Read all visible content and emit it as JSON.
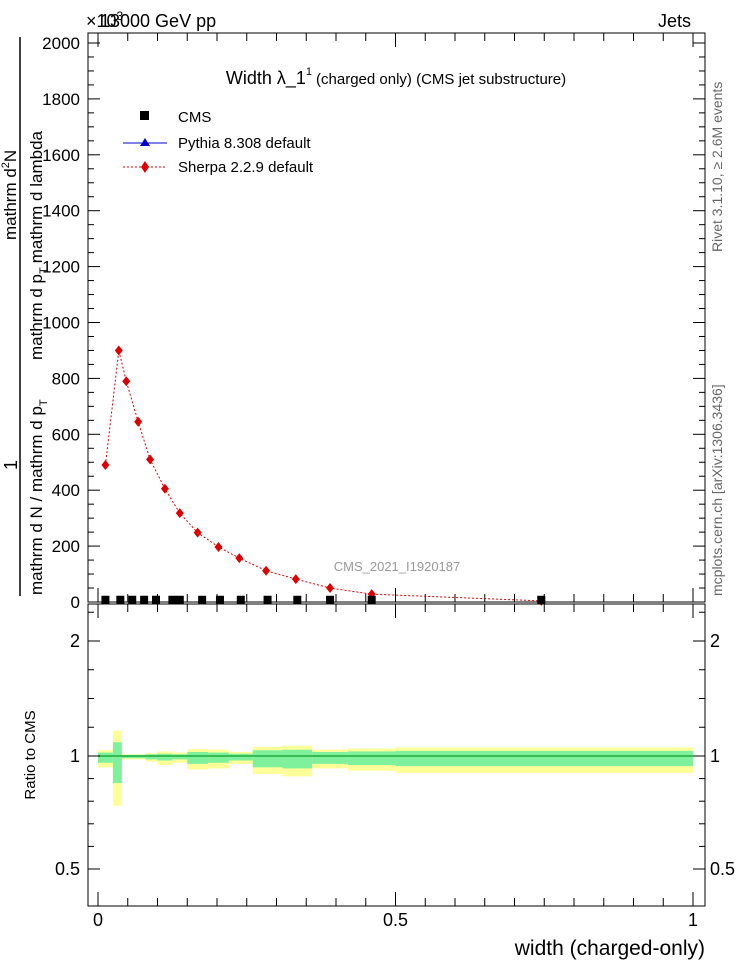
{
  "header": {
    "left": "13000 GeV pp",
    "right": "Jets",
    "exponent": "×10",
    "exponent_power": "3"
  },
  "side_labels": {
    "rivet": "Rivet 3.1.10, ≥ 2.6M events",
    "mcplots": "mcplots.cern.ch [arXiv:1306.3436]"
  },
  "watermark": "CMS_2021_I1920187",
  "chart_data": [
    {
      "type": "scatter",
      "title": "Width λ_1",
      "title_sup": "1",
      "title_suffix": "(charged only) (CMS jet substructure)",
      "ylabel": {
        "numerator_part1": "mathrm d",
        "numerator_sup": "2",
        "numerator_part2": "N",
        "denominator": "mathrm d p",
        "denominator_sub": "T",
        "denominator_tail": "mathrm d lambda",
        "prefactor": "1",
        "prefactor_denominator": "mathrm d N / mathrm d p",
        "prefactor_denominator_sub": "T"
      },
      "xlim": [
        0,
        1
      ],
      "ylim": [
        0,
        10000
      ],
      "y_ticks": [
        0,
        200,
        400,
        600,
        800,
        1000,
        1200,
        1400,
        1600,
        1800,
        2000
      ],
      "y_tick_labels": [
        "0",
        "200",
        "400",
        "600",
        "800",
        "1000",
        "1200",
        "1400",
        "1600",
        "1800",
        "2000"
      ],
      "legend_position": "top-left",
      "series": [
        {
          "name": "CMS",
          "color": "#000000",
          "marker": "square",
          "x": [
            0.0125,
            0.0375,
            0.0575,
            0.0775,
            0.0975,
            0.125,
            0.1375,
            0.175,
            0.205,
            0.24,
            0.285,
            0.335,
            0.39,
            0.46,
            0.745
          ],
          "y": [
            8,
            8,
            8,
            8,
            8,
            8,
            8,
            8,
            8,
            8,
            8,
            8,
            8,
            8,
            8
          ]
        },
        {
          "name": "Pythia 8.308 default",
          "color": "#0000cc",
          "marker": "triangle",
          "x": [],
          "y": []
        },
        {
          "name": "Sherpa 2.2.9 default",
          "color": "#dd0000",
          "marker": "diamond",
          "x": [
            0.0125,
            0.035,
            0.0475,
            0.0675,
            0.0875,
            0.1125,
            0.1375,
            0.1675,
            0.2025,
            0.2375,
            0.2825,
            0.3325,
            0.39,
            0.46,
            0.745
          ],
          "y": [
            490,
            900,
            790,
            645,
            510,
            405,
            318,
            248,
            197,
            157,
            112,
            82,
            50,
            28,
            4
          ]
        }
      ]
    },
    {
      "type": "area",
      "ylabel": "Ratio to CMS",
      "xlabel": "width (charged-only)",
      "xlim": [
        0,
        1
      ],
      "ylim": [
        0.35,
        2.3
      ],
      "x_ticks": [
        0,
        0.5,
        1
      ],
      "x_tick_labels": [
        "0",
        "0.5",
        "1"
      ],
      "y_tick_labels": [
        "0.5",
        "1",
        "2"
      ],
      "y_ticks": [
        0.5,
        1,
        2
      ],
      "bins": [
        {
          "x0": 0.0,
          "x1": 0.025,
          "inner": 0.03,
          "outer": 0.05
        },
        {
          "x0": 0.025,
          "x1": 0.04,
          "inner": 0.12,
          "outer": 0.22
        },
        {
          "x0": 0.04,
          "x1": 0.08,
          "inner": 0.01,
          "outer": 0.015
        },
        {
          "x0": 0.08,
          "x1": 0.1,
          "inner": 0.015,
          "outer": 0.025
        },
        {
          "x0": 0.1,
          "x1": 0.125,
          "inner": 0.02,
          "outer": 0.04
        },
        {
          "x0": 0.125,
          "x1": 0.15,
          "inner": 0.015,
          "outer": 0.03
        },
        {
          "x0": 0.15,
          "x1": 0.185,
          "inner": 0.035,
          "outer": 0.06
        },
        {
          "x0": 0.185,
          "x1": 0.22,
          "inner": 0.03,
          "outer": 0.055
        },
        {
          "x0": 0.22,
          "x1": 0.26,
          "inner": 0.02,
          "outer": 0.035
        },
        {
          "x0": 0.26,
          "x1": 0.31,
          "inner": 0.05,
          "outer": 0.08
        },
        {
          "x0": 0.31,
          "x1": 0.36,
          "inner": 0.055,
          "outer": 0.09
        },
        {
          "x0": 0.36,
          "x1": 0.42,
          "inner": 0.035,
          "outer": 0.055
        },
        {
          "x0": 0.42,
          "x1": 0.5,
          "inner": 0.04,
          "outer": 0.065
        },
        {
          "x0": 0.5,
          "x1": 1.0,
          "inner": 0.045,
          "outer": 0.075
        }
      ]
    }
  ],
  "colors": {
    "band_inner": "#7ff09b",
    "band_outer": "#ffff99",
    "ratio_line": "#1faa3a"
  }
}
